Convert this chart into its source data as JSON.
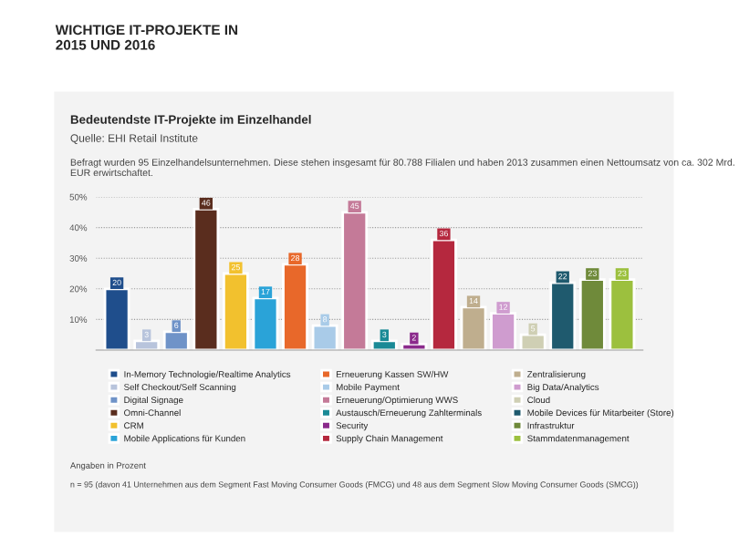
{
  "chart_data": {
    "type": "bar",
    "title": "WICHTIGE IT-PROJEKTE IN\n2015 UND 2016",
    "subtitle": "Bedeutendste IT-Projekte im Einzelhandel",
    "annotations": [
      "Quelle: EHI Retail Institute",
      "Befragt wurden 95 Einzelhandelsunternehmen. Diese stehen insgesamt für 80.788 Filialen und haben 2013 zusammen einen Nettoumsatz von ca. 302 Mrd. EUR erwirtschaftet.",
      "Angaben in Prozent",
      "n = 95 (davon 41 Unternehmen aus dem Segment Fast Moving Consumer Goods (FMCG) und 48 aus dem Segment Slow Moving Consumer Goods (SMCG))"
    ],
    "categories": [
      null,
      null,
      null,
      null,
      null,
      null,
      null,
      null,
      null,
      null,
      null,
      null,
      null,
      null,
      null,
      null,
      null,
      null
    ],
    "series": [
      {
        "name": "In-Memory Technologie/Realtime Analytics",
        "color": "#1f4e8c",
        "values": [
          20,
          null,
          null,
          null,
          null,
          null,
          null,
          null,
          null,
          null,
          null,
          null,
          null,
          null,
          null,
          null,
          null,
          null
        ]
      },
      {
        "name": "Self Checkout/Self Scanning",
        "color": "#b8c4dc",
        "values": [
          null,
          3,
          null,
          null,
          null,
          null,
          null,
          null,
          null,
          null,
          null,
          null,
          null,
          null,
          null,
          null,
          null,
          null
        ]
      },
      {
        "name": "Digital Signage",
        "color": "#6f93c8",
        "values": [
          null,
          null,
          6,
          null,
          null,
          null,
          null,
          null,
          null,
          null,
          null,
          null,
          null,
          null,
          null,
          null,
          null,
          null
        ]
      },
      {
        "name": "Omni-Channel",
        "color": "#5a2d1e",
        "values": [
          null,
          null,
          null,
          46,
          null,
          null,
          null,
          null,
          null,
          null,
          null,
          null,
          null,
          null,
          null,
          null,
          null,
          null
        ]
      },
      {
        "name": "CRM",
        "color": "#f2c12e",
        "values": [
          null,
          null,
          null,
          null,
          25,
          null,
          null,
          null,
          null,
          null,
          null,
          null,
          null,
          null,
          null,
          null,
          null,
          null
        ]
      },
      {
        "name": "Mobile Applications für Kunden",
        "color": "#2aa3d8",
        "values": [
          null,
          null,
          null,
          null,
          null,
          17,
          null,
          null,
          null,
          null,
          null,
          null,
          null,
          null,
          null,
          null,
          null,
          null
        ]
      },
      {
        "name": "Erneuerung Kassen SW/HW",
        "color": "#e8682a",
        "values": [
          null,
          null,
          null,
          null,
          null,
          null,
          28,
          null,
          null,
          null,
          null,
          null,
          null,
          null,
          null,
          null,
          null,
          null
        ]
      },
      {
        "name": "Mobile Payment",
        "color": "#a9cbe8",
        "values": [
          null,
          null,
          null,
          null,
          null,
          null,
          null,
          8,
          null,
          null,
          null,
          null,
          null,
          null,
          null,
          null,
          null,
          null
        ]
      },
      {
        "name": "Erneuerung/Optimierung WWS",
        "color": "#c47a98",
        "values": [
          null,
          null,
          null,
          null,
          null,
          null,
          null,
          null,
          45,
          null,
          null,
          null,
          null,
          null,
          null,
          null,
          null,
          null
        ]
      },
      {
        "name": "Austausch/Erneuerung Zahlterminals",
        "color": "#1a8a96",
        "values": [
          null,
          null,
          null,
          null,
          null,
          null,
          null,
          null,
          null,
          3,
          null,
          null,
          null,
          null,
          null,
          null,
          null,
          null
        ]
      },
      {
        "name": "Security",
        "color": "#8b2a8c",
        "values": [
          null,
          null,
          null,
          null,
          null,
          null,
          null,
          null,
          null,
          null,
          2,
          null,
          null,
          null,
          null,
          null,
          null,
          null
        ]
      },
      {
        "name": "Supply Chain Management",
        "color": "#b5283e",
        "values": [
          null,
          null,
          null,
          null,
          null,
          null,
          null,
          null,
          null,
          null,
          null,
          36,
          null,
          null,
          null,
          null,
          null,
          null
        ]
      },
      {
        "name": "Zentralisierung",
        "color": "#bfae8e",
        "values": [
          null,
          null,
          null,
          null,
          null,
          null,
          null,
          null,
          null,
          null,
          null,
          null,
          14,
          null,
          null,
          null,
          null,
          null
        ]
      },
      {
        "name": "Big Data/Analytics",
        "color": "#cf9ccf",
        "values": [
          null,
          null,
          null,
          null,
          null,
          null,
          null,
          null,
          null,
          null,
          null,
          null,
          null,
          12,
          null,
          null,
          null,
          null
        ]
      },
      {
        "name": "Cloud",
        "color": "#cfcfb4",
        "values": [
          null,
          null,
          null,
          null,
          null,
          null,
          null,
          null,
          null,
          null,
          null,
          null,
          null,
          null,
          5,
          null,
          null,
          null
        ]
      },
      {
        "name": "Mobile Devices für Mitarbeiter (Store)",
        "color": "#1f5a6e",
        "values": [
          null,
          null,
          null,
          null,
          null,
          null,
          null,
          null,
          null,
          null,
          null,
          null,
          null,
          null,
          null,
          22,
          null,
          null
        ]
      },
      {
        "name": "Infrastruktur",
        "color": "#6f8a3a",
        "values": [
          null,
          null,
          null,
          null,
          null,
          null,
          null,
          null,
          null,
          null,
          null,
          null,
          null,
          null,
          null,
          null,
          23,
          null
        ]
      },
      {
        "name": "Stammdatenmanagement",
        "color": "#9cc03e",
        "values": [
          null,
          null,
          null,
          null,
          null,
          null,
          null,
          null,
          null,
          null,
          null,
          null,
          null,
          null,
          null,
          null,
          null,
          23
        ]
      }
    ],
    "ylim": [
      0,
      50
    ],
    "yticks": [
      {
        "value": 10,
        "label": "10%"
      },
      {
        "value": 20,
        "label": "20%"
      },
      {
        "value": 30,
        "label": "30%"
      },
      {
        "value": 40,
        "label": "40%"
      },
      {
        "value": 50,
        "label": "50%"
      }
    ],
    "grid": "y",
    "tick_labels": "y",
    "data_labels": true,
    "legend": "bottom"
  }
}
